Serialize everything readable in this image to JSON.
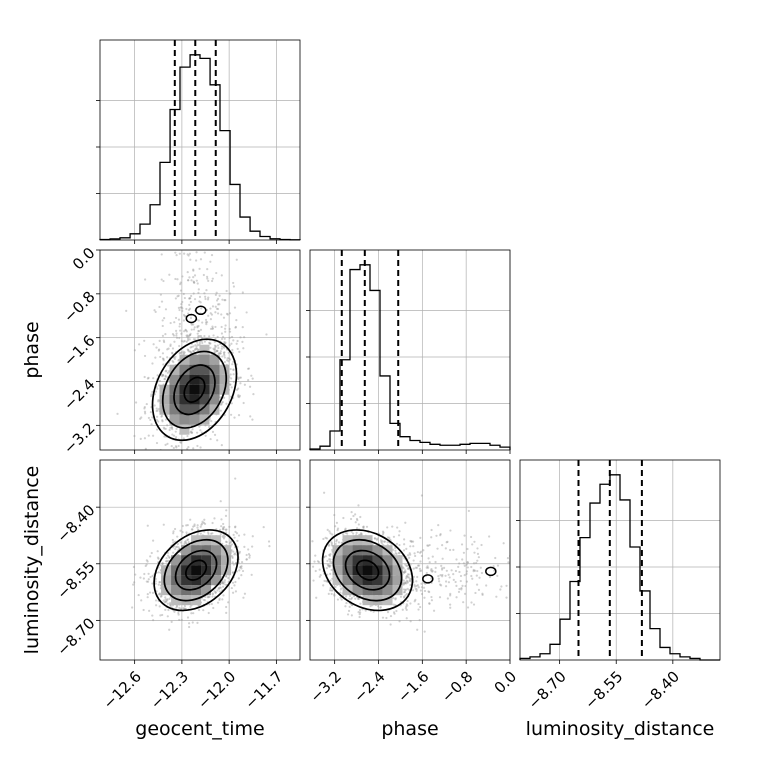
{
  "chart_data": {
    "type": "corner",
    "title": "",
    "parameters": [
      "geocent_time",
      "phase",
      "luminosity_distance"
    ],
    "axes": {
      "geocent_time": {
        "range": [
          -12.82,
          -11.55
        ],
        "ticks": [
          -12.6,
          -12.3,
          -12.0,
          -11.7
        ],
        "tick_labels": [
          "−12.6",
          "−12.3",
          "−12.0",
          "−11.7"
        ]
      },
      "phase": {
        "range": [
          -3.65,
          0.0
        ],
        "ticks": [
          -3.2,
          -2.4,
          -1.6,
          -0.8,
          0.0
        ],
        "tick_labels": [
          "−3.2",
          "−2.4",
          "−1.6",
          "−0.8",
          "0.0"
        ]
      },
      "luminosity_distance": {
        "range": [
          -8.805,
          -8.275
        ],
        "ticks": [
          -8.7,
          -8.55,
          -8.4
        ],
        "tick_labels": [
          "−8.70",
          "−8.55",
          "−8.40"
        ]
      }
    },
    "histograms": {
      "geocent_time": {
        "bin_edges": [
          -12.82,
          -12.756,
          -12.693,
          -12.629,
          -12.566,
          -12.502,
          -12.439,
          -12.375,
          -12.312,
          -12.248,
          -12.185,
          -12.121,
          -12.058,
          -11.994,
          -11.931,
          -11.867,
          -11.804,
          -11.74,
          -11.677,
          -11.613,
          -11.55
        ],
        "counts": [
          0.6,
          1.2,
          2.5,
          7,
          18,
          40,
          88,
          148,
          196,
          210,
          206,
          176,
          124,
          63,
          26,
          10,
          4,
          1.4,
          0.6,
          0.2
        ],
        "quantiles": [
          -12.345,
          -12.215,
          -12.085
        ]
      },
      "phase": {
        "bin_edges": [
          -3.65,
          -3.4675,
          -3.285,
          -3.1025,
          -2.92,
          -2.7375,
          -2.555,
          -2.3725,
          -2.19,
          -2.0075,
          -1.825,
          -1.6425,
          -1.46,
          -1.2775,
          -1.095,
          -0.9125,
          -0.73,
          -0.5475,
          -0.365,
          -0.1825,
          0.0
        ],
        "counts": [
          1,
          4,
          20,
          95,
          190,
          195,
          168,
          78,
          28,
          14,
          10,
          8,
          6,
          5,
          5,
          6,
          7,
          7,
          5,
          3
        ],
        "quantiles": [
          -3.07,
          -2.65,
          -2.04
        ]
      },
      "luminosity_distance": {
        "bin_edges": [
          -8.805,
          -8.7785,
          -8.752,
          -8.7255,
          -8.699,
          -8.6725,
          -8.646,
          -8.6195,
          -8.593,
          -8.5665,
          -8.54,
          -8.5135,
          -8.487,
          -8.4605,
          -8.434,
          -8.4075,
          -8.381,
          -8.3545,
          -8.328,
          -8.3015,
          -8.275
        ],
        "counts": [
          1,
          2,
          4,
          10,
          26,
          50,
          78,
          100,
          112,
          118,
          102,
          72,
          44,
          20,
          8,
          4,
          2,
          1,
          0,
          0
        ],
        "quantiles": [
          -8.65,
          -8.567,
          -8.482
        ]
      }
    },
    "joint": [
      {
        "x": "geocent_time",
        "y": "phase",
        "mean": [
          -12.22,
          -2.55
        ],
        "std": [
          0.13,
          0.45
        ],
        "corr": 0.3,
        "extra_blobs": [
          {
            "x": -12.24,
            "y": -1.25
          },
          {
            "x": -12.18,
            "y": -1.1
          }
        ]
      },
      {
        "x": "geocent_time",
        "y": "luminosity_distance",
        "mean": [
          -12.21,
          -8.567
        ],
        "std": [
          0.13,
          0.052
        ],
        "corr": 0.32
      },
      {
        "x": "phase",
        "y": "luminosity_distance",
        "mean": [
          -2.6,
          -8.567
        ],
        "std": [
          0.4,
          0.052
        ],
        "corr": -0.25,
        "extra_blobs": [
          {
            "x": -1.5,
            "y": -8.59
          },
          {
            "x": -0.35,
            "y": -8.57
          }
        ]
      }
    ],
    "contour_levels": [
      0.118,
      0.393,
      0.675,
      0.865
    ],
    "grid": true,
    "legend": "none"
  }
}
